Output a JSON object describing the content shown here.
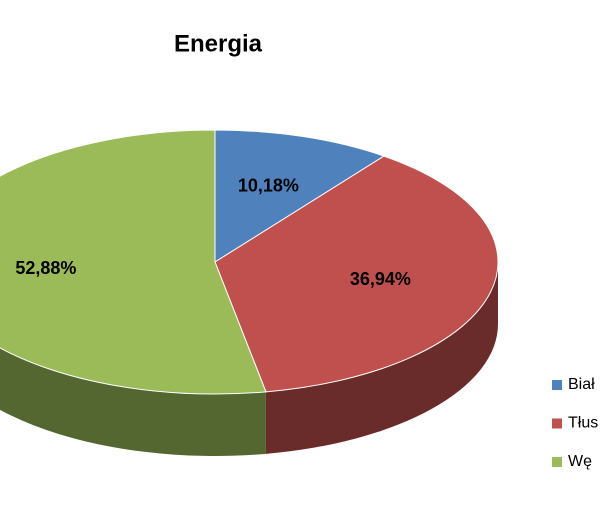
{
  "chart_data": {
    "type": "pie",
    "title": "Energia",
    "categories": [
      "Biał",
      "Tłus",
      "Wę"
    ],
    "values": [
      10.18,
      36.94,
      52.88
    ],
    "value_labels": [
      "10,18%",
      "36,94%",
      "52,88%"
    ],
    "colors": [
      "#4f81bd",
      "#c0504d",
      "#9bbb59"
    ],
    "legend": "right"
  }
}
